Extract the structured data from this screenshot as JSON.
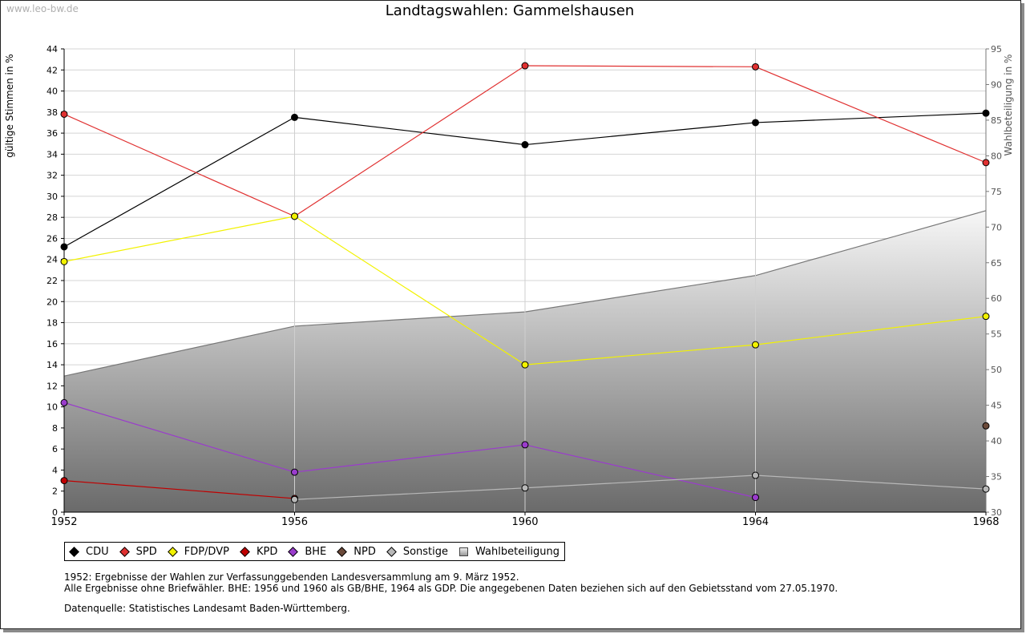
{
  "watermark": "www.leo-bw.de",
  "chart_data": {
    "type": "line",
    "title": "Landtagswahlen: Gammelshausen",
    "ylabel": "gültige Stimmen in %",
    "ylabel_right": "Wahlbeteiligung in %",
    "xlabel": "",
    "x": [
      "1952",
      "1956",
      "1960",
      "1964",
      "1968"
    ],
    "ylim": [
      0,
      44
    ],
    "y_ticks": [
      0,
      2,
      4,
      6,
      8,
      10,
      12,
      14,
      16,
      18,
      20,
      22,
      24,
      26,
      28,
      30,
      32,
      34,
      36,
      38,
      40,
      42,
      44
    ],
    "ylim_right": [
      30,
      95
    ],
    "y_ticks_right": [
      30,
      35,
      40,
      45,
      50,
      55,
      60,
      65,
      70,
      75,
      80,
      85,
      90,
      95
    ],
    "grid": true,
    "series": [
      {
        "name": "CDU",
        "color": "#000000",
        "values": [
          25.2,
          37.5,
          34.9,
          37.0,
          37.9
        ]
      },
      {
        "name": "SPD",
        "color": "#e03030",
        "values": [
          37.8,
          28.1,
          42.4,
          42.3,
          33.2
        ]
      },
      {
        "name": "FDP/DVP",
        "color": "#f2f200",
        "values": [
          23.8,
          28.1,
          14.0,
          15.9,
          18.6
        ]
      },
      {
        "name": "KPD",
        "color": "#c00000",
        "values": [
          3.0,
          1.3,
          null,
          null,
          null
        ]
      },
      {
        "name": "BHE",
        "color": "#9a3ccc",
        "values": [
          10.4,
          3.8,
          6.4,
          1.4,
          null
        ]
      },
      {
        "name": "NPD",
        "color": "#6b4a3a",
        "values": [
          null,
          null,
          null,
          null,
          8.2
        ]
      },
      {
        "name": "Sonstige",
        "color": "#b8b8b8",
        "values": [
          null,
          1.2,
          2.3,
          3.5,
          2.2
        ]
      }
    ],
    "turnout": {
      "name": "Wahlbeteiligung",
      "axis": "right",
      "values": [
        49.1,
        56.1,
        58.1,
        63.2,
        72.3
      ]
    }
  },
  "notes": [
    "1952: Ergebnisse der Wahlen zur Verfassunggebenden Landesversammlung am 9. März 1952.",
    "Alle Ergebnisse ohne Briefwähler. BHE: 1956 und 1960 als GB/BHE, 1964 als GDP. Die angegebenen Daten beziehen sich auf den Gebietsstand vom 27.05.1970."
  ],
  "source": "Datenquelle: Statistisches Landesamt Baden-Württemberg."
}
